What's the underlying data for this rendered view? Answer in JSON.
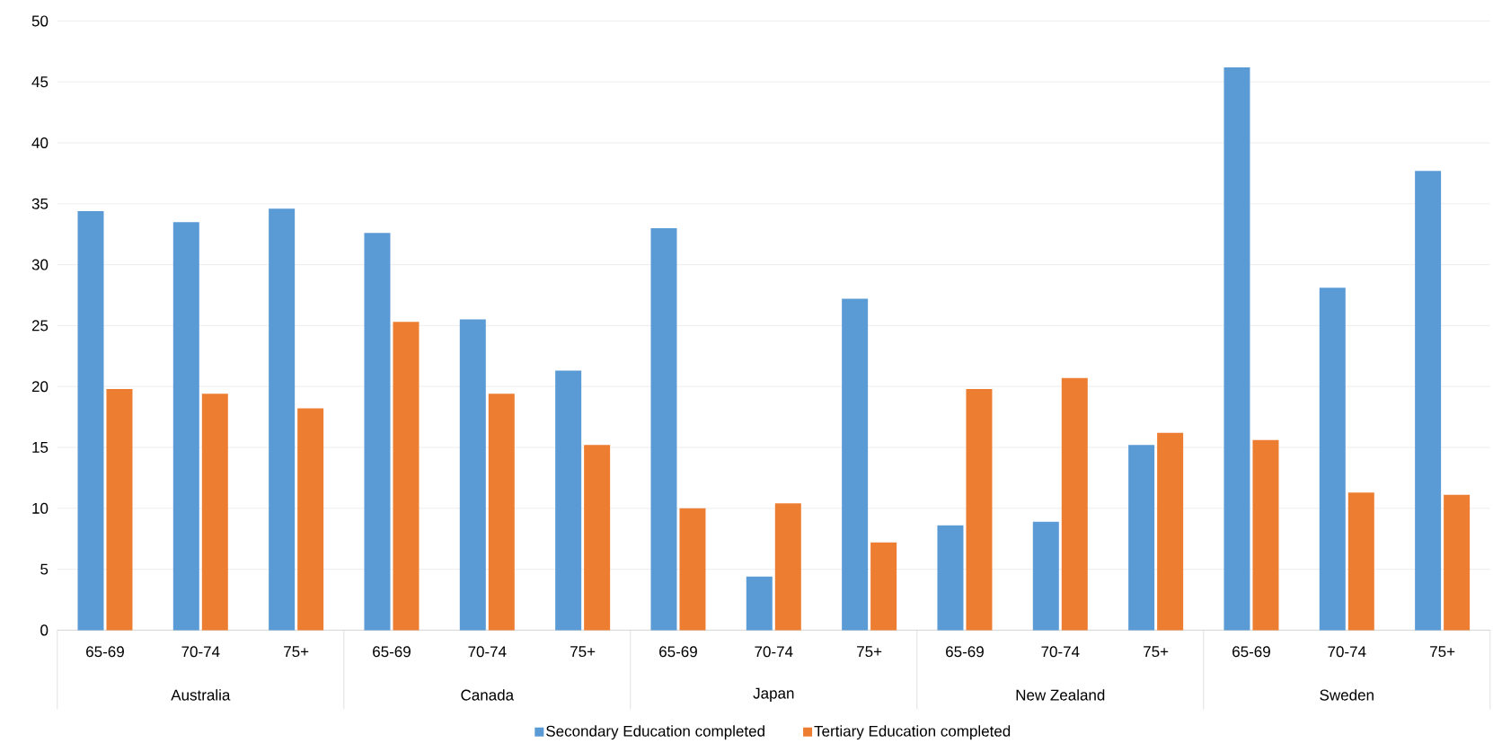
{
  "chart_data": {
    "type": "bar",
    "categories": [
      "65-69",
      "70-74",
      "75+",
      "65-69",
      "70-74",
      "75+",
      "65-69",
      "70-74",
      "75+",
      "65-69",
      "70-74",
      "75+",
      "65-69",
      "70-74",
      "75+"
    ],
    "annotations": [
      "Australia",
      "Canada",
      "Japan",
      "New Zealand",
      "Sweden"
    ],
    "series": [
      {
        "name": "Secondary Education completed",
        "color": "#5b9bd5",
        "values": [
          34.4,
          33.5,
          34.6,
          32.6,
          25.5,
          21.3,
          33.0,
          4.4,
          27.2,
          8.6,
          8.9,
          15.2,
          46.2,
          28.1,
          37.7
        ]
      },
      {
        "name": "Tertiary Education completed",
        "color": "#ed7d31",
        "values": [
          19.8,
          19.4,
          18.2,
          25.3,
          19.4,
          15.2,
          10.0,
          10.4,
          7.2,
          19.8,
          20.7,
          16.2,
          15.6,
          11.3,
          11.1
        ]
      }
    ],
    "ylim": [
      0,
      50
    ],
    "yticks": [
      0,
      5,
      10,
      15,
      20,
      25,
      30,
      35,
      40,
      45,
      50
    ],
    "grid": "y",
    "legend": "bottom"
  }
}
